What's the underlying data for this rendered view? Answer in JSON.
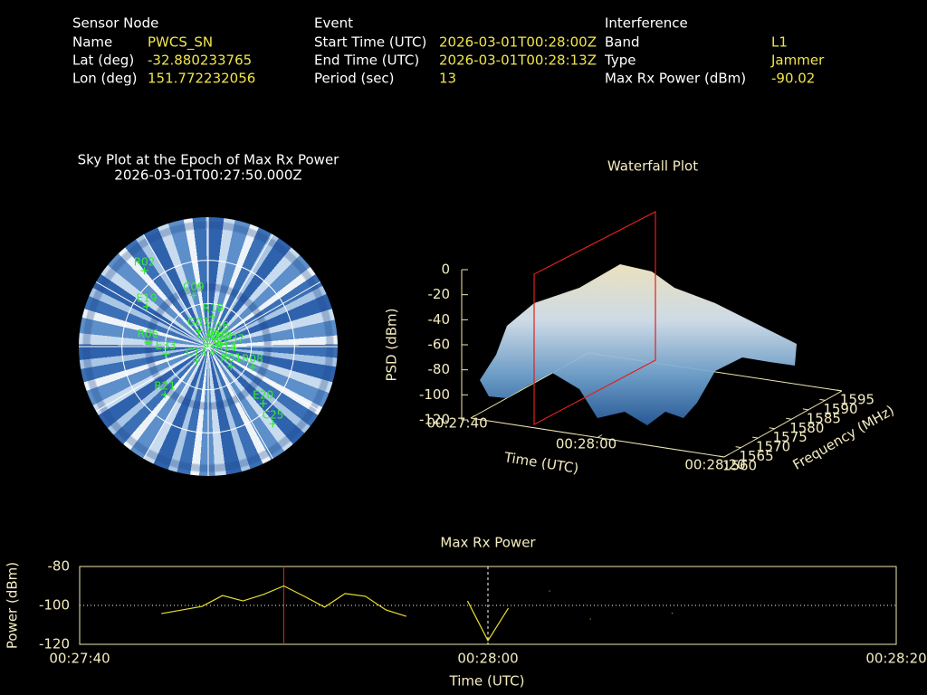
{
  "info": {
    "sensor_node": {
      "title": "Sensor Node",
      "rows": [
        [
          "Name",
          "PWCS_SN"
        ],
        [
          "Lat (deg)",
          "-32.880233765"
        ],
        [
          "Lon (deg)",
          "151.772232056"
        ]
      ]
    },
    "event": {
      "title": "Event",
      "rows": [
        [
          "Start Time (UTC)",
          "2026-03-01T00:28:00Z"
        ],
        [
          "End Time (UTC)",
          "2026-03-01T00:28:13Z"
        ],
        [
          "Period (sec)",
          "13"
        ]
      ]
    },
    "interference": {
      "title": "Interference",
      "rows": [
        [
          "Band",
          "L1"
        ],
        [
          "Type",
          "Jammer"
        ],
        [
          "Max Rx Power (dBm)",
          "-90.02"
        ]
      ]
    }
  },
  "chart_data": [
    {
      "type": "polar",
      "title": "Sky Plot at the Epoch of Max Rx Power",
      "subtitle": "2026-03-01T00:27:50.000Z",
      "rlim": [
        90,
        0
      ],
      "rticks": [
        0,
        30,
        60
      ],
      "color": "#33ee33",
      "points": [
        {
          "label": "C39",
          "az": 348,
          "el": 2
        },
        {
          "label": "R19",
          "az": 9,
          "el": 21
        },
        {
          "label": "C46",
          "az": 40,
          "el": 11
        },
        {
          "label": "R15",
          "az": 68,
          "el": 7
        },
        {
          "label": "G23",
          "az": 82,
          "el": 9
        },
        {
          "label": "E37",
          "az": 92,
          "el": 18
        },
        {
          "label": "R08",
          "az": 115,
          "el": 34
        },
        {
          "label": "R14",
          "az": 117,
          "el": 14
        },
        {
          "label": "R01",
          "az": 131,
          "el": 21
        },
        {
          "label": "C26",
          "az": 139,
          "el": 5
        },
        {
          "label": "E20",
          "az": 136,
          "el": 55
        },
        {
          "label": "C25",
          "az": 140,
          "el": 70
        },
        {
          "label": "R21",
          "az": 222,
          "el": 45
        },
        {
          "label": "C14",
          "az": 219,
          "el": 13
        },
        {
          "label": "E33",
          "az": 260,
          "el": 30
        },
        {
          "label": "R06",
          "az": 274,
          "el": 42
        },
        {
          "label": "E19",
          "az": 303,
          "el": 51
        },
        {
          "label": "G07",
          "az": 328,
          "el": 13
        },
        {
          "label": "C09",
          "az": 344,
          "el": 37
        },
        {
          "label": "R02",
          "az": 320,
          "el": 69
        }
      ]
    },
    {
      "type": "surface",
      "title": "Waterfall Plot",
      "xlabel": "Time (UTC)",
      "ylabel": "Frequency (MHz)",
      "zlabel": "PSD (dBm)",
      "xlim": [
        "00:27:40",
        "00:28:20"
      ],
      "xticks": [
        "00:27:40",
        "00:28:00",
        "00:28:20"
      ],
      "ylim": [
        1560,
        1595
      ],
      "yticks": [
        1560,
        1565,
        1570,
        1575,
        1580,
        1585,
        1590,
        1595
      ],
      "zlim": [
        -120,
        0
      ],
      "zticks": [
        0,
        -20,
        -40,
        -60,
        -80,
        -100,
        -120
      ]
    },
    {
      "type": "line",
      "title": "Max Rx Power",
      "xlabel": "Time (UTC)",
      "ylabel": "Power (dBm)",
      "xlim": [
        "00:27:40",
        "00:28:20"
      ],
      "xticks": [
        "00:27:40",
        "00:28:00",
        "00:28:20"
      ],
      "ylim": [
        -120,
        -80
      ],
      "yticks": [
        -80,
        -100,
        -120
      ],
      "marker_x": "00:27:50",
      "x": [
        "00:27:44",
        "00:27:46",
        "00:27:47",
        "00:27:48",
        "00:27:49",
        "00:27:50",
        "00:27:51",
        "00:27:52",
        "00:27:53",
        "00:27:54",
        "00:27:55",
        "00:27:56",
        "00:27:57",
        "00:27:59",
        "00:28:00",
        "00:28:01",
        "00:28:02",
        "00:28:03",
        "00:28:04",
        "00:28:05",
        "00:28:06",
        "00:28:09"
      ],
      "series": [
        {
          "color": "#e8e030",
          "values": [
            -104.2,
            -100.5,
            -94.9,
            -97.7,
            -94.4,
            -90.0,
            -95.3,
            -100.9,
            -93.9,
            -95.3,
            -102.3,
            -105.6,
            null,
            -97.7,
            -118.1,
            -101.4,
            null,
            -92.6,
            null,
            -107.0,
            null,
            -104.0
          ]
        }
      ]
    }
  ]
}
